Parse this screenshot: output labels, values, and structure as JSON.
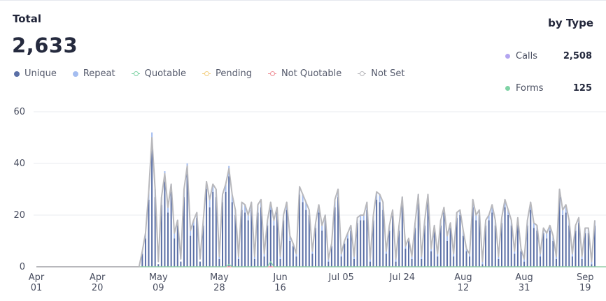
{
  "header": {
    "title": "Total",
    "total": "2,633"
  },
  "legend": [
    {
      "label": "Unique",
      "color": "#5a6fa6",
      "style": "dot"
    },
    {
      "label": "Repeat",
      "color": "#a4bdf0",
      "style": "dot"
    },
    {
      "label": "Quotable",
      "color": "#7fd3a5",
      "style": "line"
    },
    {
      "label": "Pending",
      "color": "#f3cf7f",
      "style": "line"
    },
    {
      "label": "Not Quotable",
      "color": "#ef8f97",
      "style": "line"
    },
    {
      "label": "Not Set",
      "color": "#b8b8bc",
      "style": "line"
    }
  ],
  "by_type": {
    "title": "by Type",
    "items": [
      {
        "label": "Calls",
        "count": "2,508",
        "color": "#b3a5f0"
      },
      {
        "label": "Forms",
        "count": "125",
        "color": "#7fd3a5"
      }
    ]
  },
  "chart_data": {
    "type": "bar",
    "ylim": [
      0,
      60
    ],
    "yticks": [
      "0",
      "20",
      "40",
      "60"
    ],
    "x_labels": [
      [
        "Apr",
        "01"
      ],
      [
        "Apr",
        "20"
      ],
      [
        "May",
        "09"
      ],
      [
        "May",
        "28"
      ],
      [
        "Jun",
        "16"
      ],
      [
        "Jul 05",
        ""
      ],
      [
        "Jul 24",
        ""
      ],
      [
        "Aug",
        "12"
      ],
      [
        "Aug",
        "31"
      ],
      [
        "Sep",
        "19"
      ]
    ],
    "start_date": "Apr 01",
    "series": [
      {
        "name": "Not Set",
        "values": [
          0,
          0,
          0,
          0,
          0,
          0,
          0,
          0,
          0,
          0,
          0,
          0,
          0,
          0,
          0,
          0,
          0,
          0,
          0,
          0,
          0,
          0,
          0,
          0,
          0,
          0,
          0,
          0,
          0,
          0,
          0,
          0,
          0,
          6,
          13,
          29,
          50,
          30,
          2,
          27,
          36,
          23,
          32,
          13,
          18,
          3,
          30,
          39,
          14,
          18,
          21,
          3,
          18,
          33,
          26,
          32,
          30,
          4,
          28,
          32,
          38,
          28,
          22,
          4,
          25,
          24,
          20,
          25,
          4,
          24,
          26,
          5,
          18,
          25,
          18,
          23,
          4,
          20,
          25,
          12,
          9,
          5,
          31,
          28,
          25,
          22,
          6,
          17,
          24,
          16,
          20,
          3,
          9,
          26,
          30,
          5,
          10,
          13,
          16,
          4,
          19,
          20,
          20,
          25,
          3,
          20,
          29,
          28,
          25,
          6,
          16,
          22,
          3,
          16,
          27,
          8,
          11,
          4,
          17,
          28,
          4,
          18,
          28,
          7,
          16,
          5,
          18,
          23,
          12,
          17,
          5,
          21,
          22,
          14,
          7,
          5,
          26,
          20,
          22,
          2,
          18,
          20,
          24,
          18,
          4,
          19,
          26,
          22,
          18,
          6,
          19,
          7,
          3,
          18,
          25,
          17,
          16,
          5,
          15,
          13,
          16,
          12,
          4,
          30,
          22,
          24,
          18,
          5,
          16,
          19,
          4,
          15,
          15,
          2,
          18
        ]
      },
      {
        "name": "Unique",
        "values": [
          0,
          0,
          0,
          0,
          0,
          0,
          0,
          0,
          0,
          0,
          0,
          0,
          0,
          0,
          0,
          0,
          0,
          0,
          0,
          0,
          0,
          0,
          0,
          0,
          0,
          0,
          0,
          0,
          0,
          0,
          0,
          0,
          0,
          5,
          11,
          26,
          46,
          27,
          1,
          24,
          33,
          21,
          29,
          11,
          16,
          2,
          27,
          36,
          12,
          16,
          19,
          2,
          16,
          30,
          23,
          29,
          27,
          3,
          25,
          29,
          35,
          25,
          20,
          3,
          22,
          21,
          18,
          22,
          3,
          21,
          23,
          4,
          16,
          22,
          16,
          21,
          3,
          18,
          22,
          10,
          8,
          4,
          28,
          25,
          22,
          20,
          5,
          15,
          21,
          14,
          18,
          2,
          8,
          23,
          27,
          4,
          9,
          11,
          14,
          3,
          17,
          18,
          18,
          22,
          2,
          18,
          26,
          25,
          22,
          5,
          14,
          20,
          2,
          14,
          24,
          7,
          10,
          3,
          15,
          25,
          3,
          16,
          25,
          6,
          14,
          4,
          16,
          21,
          10,
          15,
          4,
          19,
          20,
          12,
          6,
          4,
          23,
          18,
          20,
          1,
          16,
          18,
          21,
          16,
          3,
          17,
          23,
          20,
          16,
          5,
          17,
          6,
          2,
          16,
          22,
          15,
          14,
          4,
          13,
          11,
          14,
          10,
          3,
          27,
          20,
          21,
          16,
          4,
          14,
          17,
          3,
          13,
          13,
          1,
          16
        ]
      },
      {
        "name": "Repeat",
        "values": [
          0,
          0,
          0,
          0,
          0,
          0,
          0,
          0,
          0,
          0,
          0,
          0,
          0,
          0,
          0,
          0,
          0,
          0,
          0,
          0,
          0,
          0,
          0,
          0,
          0,
          0,
          0,
          0,
          0,
          0,
          0,
          0,
          0,
          1,
          2,
          3,
          6,
          3,
          0,
          3,
          4,
          2,
          3,
          2,
          2,
          0,
          3,
          4,
          2,
          2,
          2,
          0,
          2,
          3,
          3,
          3,
          3,
          1,
          3,
          3,
          4,
          3,
          2,
          1,
          3,
          3,
          2,
          3,
          1,
          3,
          3,
          1,
          2,
          3,
          2,
          2,
          1,
          2,
          3,
          2,
          1,
          1,
          3,
          3,
          3,
          2,
          1,
          2,
          3,
          2,
          2,
          1,
          1,
          3,
          3,
          1,
          1,
          2,
          2,
          1,
          2,
          2,
          2,
          3,
          1,
          2,
          3,
          3,
          3,
          1,
          2,
          2,
          1,
          2,
          3,
          1,
          1,
          1,
          2,
          3,
          1,
          2,
          3,
          1,
          2,
          1,
          2,
          2,
          2,
          2,
          1,
          2,
          2,
          2,
          1,
          1,
          3,
          2,
          2,
          1,
          2,
          2,
          3,
          2,
          1,
          2,
          3,
          2,
          2,
          1,
          2,
          1,
          1,
          2,
          3,
          2,
          2,
          1,
          2,
          2,
          2,
          2,
          1,
          3,
          2,
          3,
          2,
          1,
          2,
          2,
          1,
          2,
          2,
          1,
          2
        ]
      },
      {
        "name": "Quotable",
        "values": [
          0,
          0,
          0,
          0,
          0,
          0,
          0,
          0,
          0,
          0,
          0,
          0,
          0,
          0,
          0,
          0,
          0,
          0,
          0,
          0,
          0,
          0,
          0,
          0,
          0,
          0,
          0,
          0,
          0,
          0,
          0,
          0,
          0,
          0,
          0,
          0,
          0,
          0,
          0,
          0,
          0,
          0,
          0,
          0,
          0,
          0,
          0,
          0,
          0,
          0,
          0,
          0,
          0,
          0,
          0,
          0,
          0,
          0,
          0,
          0,
          1,
          0,
          0,
          0,
          0,
          0,
          0,
          0,
          0,
          0,
          0,
          0,
          0,
          2,
          0,
          0,
          0,
          0,
          0,
          0,
          0,
          0,
          0,
          0,
          0,
          0,
          0,
          0,
          0,
          0,
          0,
          0,
          0,
          0,
          0,
          0,
          0,
          0,
          0,
          0,
          0,
          0,
          0,
          0,
          0,
          0,
          0,
          0,
          0,
          0,
          0,
          0,
          0,
          0,
          0,
          0,
          0,
          0,
          0,
          0,
          0,
          0,
          0,
          0,
          0,
          0,
          0,
          0,
          0,
          0,
          0,
          0,
          0,
          0,
          0,
          0,
          0,
          0,
          0,
          0,
          0,
          0,
          0,
          0,
          0,
          0,
          0,
          0,
          0,
          0,
          0,
          0,
          0,
          0,
          0,
          0,
          0,
          0,
          0,
          0,
          0,
          0,
          0,
          0,
          0,
          0,
          0,
          0,
          0,
          0,
          0,
          0,
          0,
          0,
          0,
          0,
          0,
          0,
          0,
          0,
          0,
          0,
          0,
          0,
          0,
          0,
          0
        ]
      },
      {
        "name": "Not Quotable",
        "values": [
          0,
          0,
          0,
          0,
          0,
          0,
          0,
          0,
          0,
          0,
          0,
          0,
          0,
          0,
          0,
          0,
          0,
          0,
          0,
          0,
          0,
          0,
          0,
          0,
          0,
          0,
          0,
          0,
          0,
          0,
          0,
          0,
          0,
          0,
          0,
          0,
          0,
          0,
          0,
          0,
          0,
          0,
          0,
          0,
          0,
          0,
          0,
          0,
          0,
          0,
          0,
          0,
          0,
          0,
          0,
          0,
          0,
          0,
          0,
          0,
          0,
          0,
          0,
          0,
          0,
          0,
          0,
          0,
          0,
          0,
          0,
          0,
          0,
          0,
          0,
          0,
          0,
          0,
          0,
          0,
          0,
          0,
          0,
          0,
          0,
          0,
          0,
          0,
          0,
          0,
          0,
          0,
          0,
          0,
          0,
          0,
          0,
          0,
          0,
          0,
          0,
          0,
          0,
          0,
          0,
          0,
          0,
          0,
          0,
          0,
          0,
          0,
          0,
          0,
          0,
          0,
          0,
          0,
          0,
          0,
          0,
          0,
          0,
          0,
          0,
          0,
          0,
          0,
          0,
          0,
          0,
          0,
          0,
          0,
          0,
          0,
          0,
          0,
          0,
          0,
          0,
          0,
          0,
          0,
          0,
          0,
          0,
          0,
          0,
          0,
          0,
          0,
          0,
          0,
          0,
          0,
          0,
          0,
          0,
          0,
          0,
          0,
          0,
          0,
          0,
          0,
          0,
          0,
          0,
          0,
          0,
          0,
          0,
          0,
          0,
          0,
          0,
          0,
          0,
          0,
          0,
          0,
          0,
          0,
          0,
          0,
          0
        ]
      }
    ]
  }
}
